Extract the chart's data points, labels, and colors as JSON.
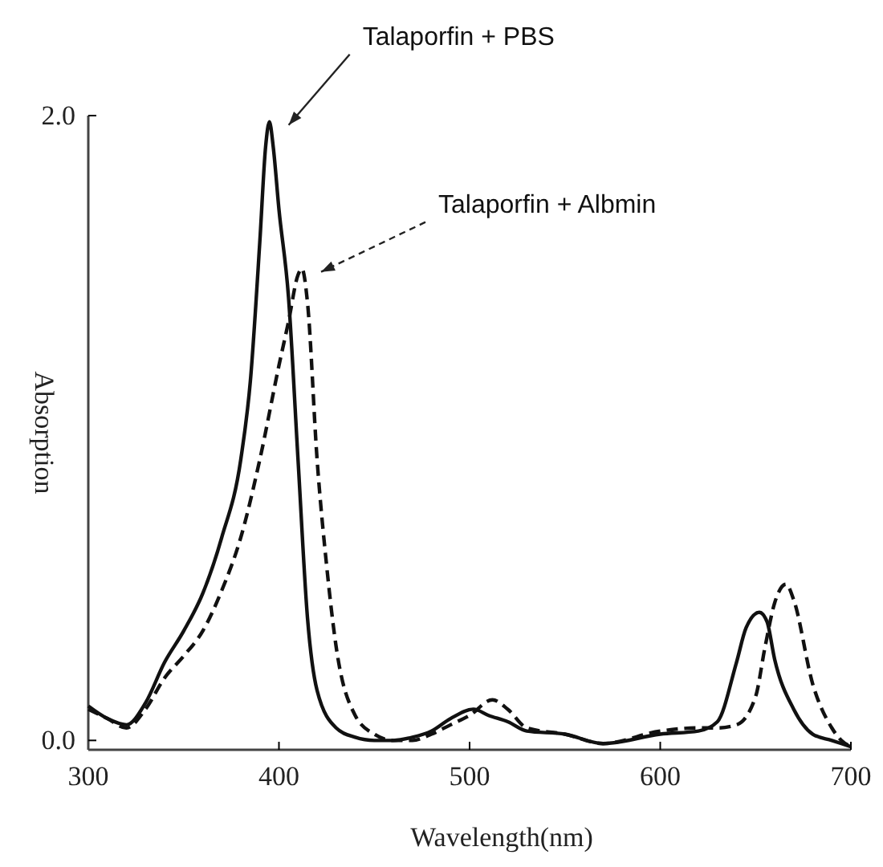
{
  "chart_data": {
    "type": "line",
    "xlabel": "Wavelength(nm)",
    "ylabel": "Absorption",
    "xlim": [
      300,
      700
    ],
    "ylim": [
      -0.03,
      2.0
    ],
    "xticks": [
      300,
      400,
      500,
      600,
      700
    ],
    "yticks": [
      {
        "value": 0,
        "label": "0.0"
      },
      {
        "value": 2,
        "label": "2.0"
      }
    ],
    "grid": false,
    "legend": false,
    "marker": "none",
    "series": [
      {
        "name": "Talaporfin + PBS",
        "color": "#111111",
        "line_style": "solid",
        "x": [
          300,
          310,
          320,
          330,
          340,
          350,
          360,
          370,
          380,
          385,
          390,
          393,
          395,
          397,
          400,
          405,
          410,
          415,
          420,
          430,
          440,
          450,
          460,
          470,
          480,
          490,
          502,
          510,
          520,
          530,
          550,
          570,
          600,
          620,
          630,
          640,
          645,
          652,
          656,
          660,
          670,
          680,
          690,
          700
        ],
        "values": [
          0.11,
          0.07,
          0.05,
          0.12,
          0.25,
          0.35,
          0.47,
          0.65,
          0.9,
          1.15,
          1.6,
          1.9,
          1.98,
          1.9,
          1.7,
          1.42,
          0.9,
          0.39,
          0.16,
          0.04,
          0.01,
          0,
          0,
          0.01,
          0.03,
          0.07,
          0.1,
          0.08,
          0.06,
          0.03,
          0.02,
          -0.01,
          0.02,
          0.03,
          0.06,
          0.25,
          0.36,
          0.41,
          0.38,
          0.26,
          0.1,
          0.02,
          0,
          -0.02
        ]
      },
      {
        "name": "Talaporfin + Albmin",
        "color": "#111111",
        "line_style": "dashed",
        "x": [
          300,
          310,
          320,
          330,
          340,
          350,
          360,
          370,
          380,
          390,
          400,
          405,
          410,
          412,
          415,
          420,
          425,
          430,
          440,
          450,
          460,
          470,
          480,
          490,
          500,
          512,
          520,
          530,
          550,
          570,
          600,
          620,
          630,
          640,
          650,
          655,
          660,
          666,
          670,
          680,
          690,
          695,
          700
        ],
        "values": [
          0.1,
          0.07,
          0.04,
          0.1,
          0.2,
          0.27,
          0.35,
          0.48,
          0.65,
          0.9,
          1.2,
          1.34,
          1.49,
          1.51,
          1.4,
          0.9,
          0.56,
          0.3,
          0.08,
          0.02,
          0,
          0,
          0.02,
          0.05,
          0.08,
          0.13,
          0.1,
          0.04,
          0.02,
          -0.01,
          0.03,
          0.04,
          0.04,
          0.05,
          0.14,
          0.3,
          0.44,
          0.5,
          0.45,
          0.18,
          0.04,
          0,
          -0.02
        ]
      }
    ]
  }
}
